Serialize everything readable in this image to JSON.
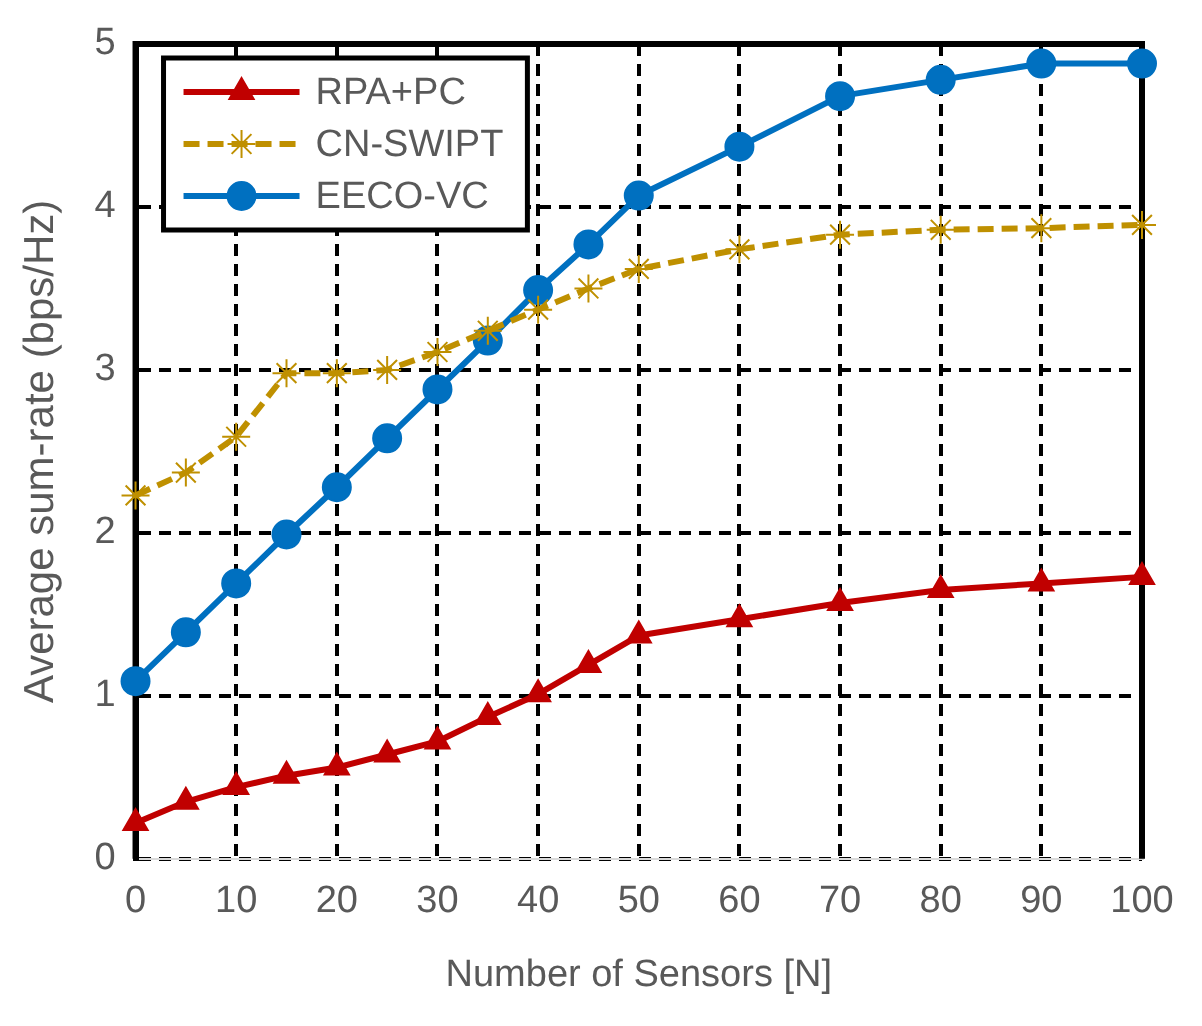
{
  "chart_data": {
    "type": "line",
    "xlabel": "Number of Sensors [N]",
    "ylabel": "Average sum-rate (bps/Hz)",
    "x": [
      0,
      5,
      10,
      15,
      20,
      25,
      30,
      35,
      40,
      45,
      50,
      60,
      70,
      80,
      90,
      100
    ],
    "xlim": [
      0,
      100
    ],
    "xticks": [
      0,
      10,
      20,
      30,
      40,
      50,
      60,
      70,
      80,
      90,
      100
    ],
    "ylim": [
      0,
      5
    ],
    "yticks": [
      0,
      1,
      2,
      3,
      4,
      5
    ],
    "grid": true,
    "legend": "top left",
    "series": [
      {
        "name": "RPA+PC",
        "color": "#c00000",
        "marker": "triangle",
        "line_style": "solid",
        "values": [
          0.22,
          0.35,
          0.44,
          0.51,
          0.56,
          0.64,
          0.72,
          0.87,
          1.01,
          1.19,
          1.37,
          1.47,
          1.57,
          1.65,
          1.69,
          1.73
        ]
      },
      {
        "name": "CN-SWIPT",
        "color": "#bf9000",
        "marker": "cross",
        "line_style": "dashed",
        "values": [
          2.23,
          2.37,
          2.59,
          2.98,
          2.98,
          3.0,
          3.11,
          3.24,
          3.37,
          3.5,
          3.62,
          3.74,
          3.83,
          3.86,
          3.87,
          3.89
        ]
      },
      {
        "name": "EECO-VC",
        "color": "#0070c0",
        "marker": "circle",
        "line_style": "solid",
        "values": [
          1.09,
          1.39,
          1.69,
          1.99,
          2.28,
          2.58,
          2.88,
          3.18,
          3.49,
          3.77,
          4.07,
          4.37,
          4.68,
          4.78,
          4.88,
          4.88
        ]
      }
    ]
  }
}
